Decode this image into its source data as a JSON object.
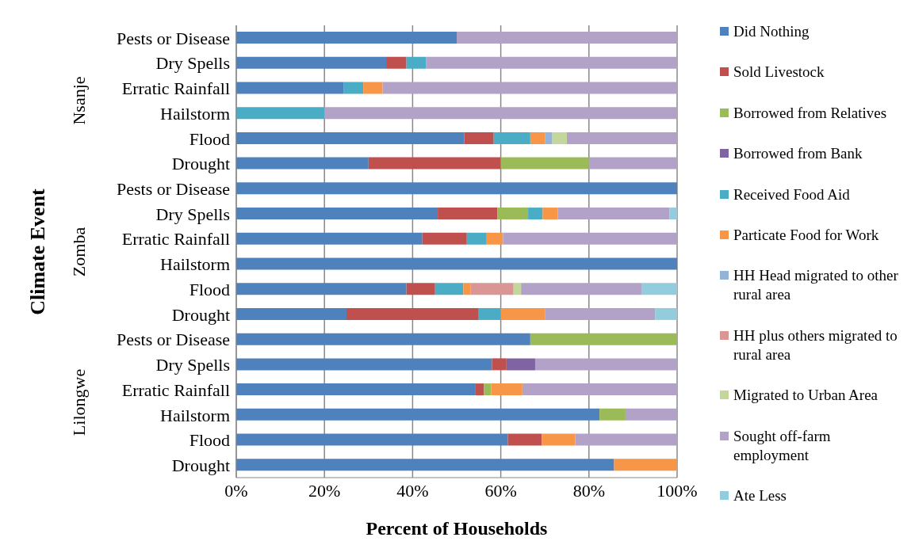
{
  "chart_data": {
    "type": "bar",
    "orientation": "horizontal",
    "stacked": true,
    "xlabel": "Percent of Households",
    "ylabel": "Climate Event",
    "annotations": [
      "Nsanje",
      "Zomba",
      "Lilongwe"
    ],
    "categories": [
      "Pests or Disease",
      "Dry Spells",
      "Erratic Rainfall",
      "Hailstorm",
      "Flood",
      "Drought",
      "Pests or Disease",
      "Dry Spells",
      "Erratic Rainfall",
      "Hailstorm",
      "Flood",
      "Drought",
      "Pests or Disease",
      "Dry Spells",
      "Erratic Rainfall",
      "Hailstorm",
      "Flood",
      "Drought"
    ],
    "series": [
      {
        "name": "Did Nothing",
        "color": "#4f81bd",
        "values": [
          50,
          34,
          24.3,
          null,
          51.7,
          30,
          100,
          45.7,
          42.2,
          100,
          38.6,
          25,
          66.7,
          58,
          54.3,
          82.4,
          61.6,
          85.7
        ]
      },
      {
        "name": "Sold Livestock",
        "color": "#c0504d",
        "values": [
          null,
          4.6,
          null,
          null,
          6.7,
          30,
          null,
          13.5,
          10.1,
          null,
          6.5,
          30,
          null,
          3.3,
          1.9,
          null,
          7.7,
          null
        ]
      },
      {
        "name": "Borrowed from Relatives",
        "color": "#9bbb59",
        "values": [
          null,
          null,
          null,
          null,
          null,
          20,
          null,
          7,
          null,
          null,
          null,
          null,
          33.3,
          null,
          1.6,
          5.9,
          null,
          null
        ]
      },
      {
        "name": "Borrowed from Bank",
        "color": "#8064a2",
        "values": [
          null,
          null,
          null,
          null,
          null,
          null,
          null,
          null,
          null,
          null,
          null,
          null,
          null,
          6.5,
          null,
          null,
          null,
          null
        ]
      },
      {
        "name": "Received Food Aid",
        "color": "#4bacc6",
        "values": [
          null,
          4.5,
          4.5,
          20,
          8.3,
          null,
          null,
          3.3,
          4.5,
          null,
          6.4,
          5,
          null,
          null,
          null,
          null,
          null,
          null
        ]
      },
      {
        "name": "Particate Food for Work",
        "color": "#f79646",
        "values": [
          null,
          null,
          4.4,
          null,
          3.3,
          null,
          null,
          3.4,
          3.7,
          null,
          1.6,
          10,
          null,
          null,
          7.1,
          null,
          7.6,
          14.3
        ]
      },
      {
        "name": "HH Head migrated to other rural area",
        "color": "#95b3d7",
        "values": [
          null,
          null,
          null,
          null,
          1.7,
          null,
          null,
          null,
          null,
          null,
          null,
          null,
          null,
          null,
          null,
          null,
          null,
          null
        ]
      },
      {
        "name": "HH plus others migrated to rural area",
        "color": "#da9694",
        "values": [
          null,
          null,
          null,
          null,
          null,
          null,
          null,
          null,
          null,
          null,
          9.8,
          null,
          null,
          null,
          null,
          null,
          null,
          null
        ]
      },
      {
        "name": "Migrated to Urban Area",
        "color": "#c3d69b",
        "values": [
          null,
          null,
          null,
          null,
          3.3,
          null,
          null,
          null,
          null,
          null,
          1.7,
          null,
          null,
          null,
          null,
          null,
          null,
          null
        ]
      },
      {
        "name": "Sought off-farm employment",
        "color": "#b3a2c7",
        "values": [
          50,
          56.9,
          66.8,
          80,
          25,
          20,
          null,
          25.4,
          39.5,
          null,
          27.3,
          25,
          null,
          32.2,
          35.1,
          11.7,
          23.1,
          null
        ]
      },
      {
        "name": "Ate Less",
        "color": "#93cddd",
        "values": [
          null,
          null,
          null,
          null,
          null,
          null,
          null,
          1.7,
          null,
          null,
          8.1,
          5,
          null,
          null,
          null,
          null,
          null,
          null
        ]
      }
    ],
    "xlim": [
      0,
      100
    ],
    "xticks": [
      {
        "value": 0,
        "label": "0%"
      },
      {
        "value": 20,
        "label": "20%"
      },
      {
        "value": 40,
        "label": "40%"
      },
      {
        "value": 60,
        "label": "60%"
      },
      {
        "value": 80,
        "label": "80%"
      },
      {
        "value": 100,
        "label": "100%"
      }
    ],
    "grid": "x",
    "legend": "right"
  }
}
